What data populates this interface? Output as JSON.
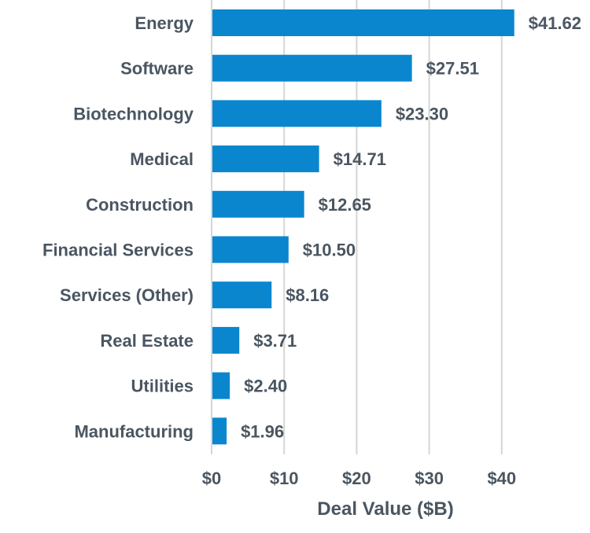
{
  "chart_data": {
    "type": "bar",
    "orientation": "horizontal",
    "title": "",
    "xlabel": "Deal Value ($B)",
    "ylabel": "",
    "categories": [
      "Energy",
      "Software",
      "Biotechnology",
      "Medical",
      "Construction",
      "Financial Services",
      "Services (Other)",
      "Real Estate",
      "Utilities",
      "Manufacturing"
    ],
    "values": [
      41.62,
      27.51,
      23.3,
      14.71,
      12.65,
      10.5,
      8.16,
      3.71,
      2.4,
      1.96
    ],
    "value_labels": [
      "$41.62",
      "$27.51",
      "$23.30",
      "$14.71",
      "$12.65",
      "$10.50",
      "$8.16",
      "$3.71",
      "$2.40",
      "$1.96"
    ],
    "xlim": [
      0,
      45
    ],
    "xticks": [
      0,
      10,
      20,
      30,
      40
    ],
    "xtick_labels": [
      "$0",
      "$10",
      "$20",
      "$30",
      "$40"
    ],
    "grid": "vertical",
    "legend": "none",
    "bar_color": "#0a86cf",
    "text_color": "#4a5661",
    "grid_color": "#d6d6d6"
  }
}
